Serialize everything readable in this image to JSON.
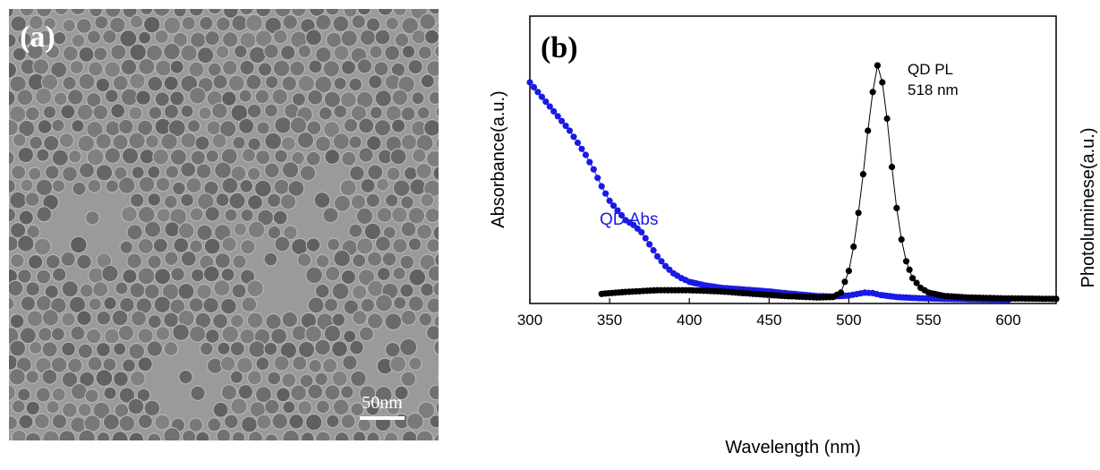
{
  "panel_a": {
    "label": "(a)",
    "scale_bar_label": "50nm"
  },
  "panel_b": {
    "label": "(b)"
  },
  "chart_data": {
    "type": "scatter",
    "xlabel": "Wavelength (nm)",
    "ylabel_left": "Absorbance(a.u.)",
    "ylabel_right": "Photoluminese(a.u.)",
    "xlim": [
      300,
      630
    ],
    "ylim": [
      0,
      1.0
    ],
    "xticks": [
      300,
      350,
      400,
      450,
      500,
      550,
      600
    ],
    "y_ticks_shown": false,
    "grid": false,
    "annotations": [
      {
        "text": "QD PL",
        "color": "#000000"
      },
      {
        "text": "518 nm",
        "color": "#000000"
      },
      {
        "text": "QD Abs",
        "color": "#1a1ae6"
      }
    ],
    "series": [
      {
        "name": "QD Abs",
        "color": "#1a1ae6",
        "style": "dots-line",
        "x": [
          300,
          305,
          310,
          315,
          320,
          325,
          330,
          335,
          340,
          345,
          350,
          355,
          360,
          365,
          370,
          375,
          380,
          385,
          390,
          395,
          400,
          410,
          420,
          430,
          440,
          450,
          460,
          470,
          480,
          490,
          500,
          505,
          510,
          515,
          520,
          530,
          540,
          550,
          560,
          570,
          580,
          590,
          600
        ],
        "y": [
          0.9,
          0.86,
          0.82,
          0.78,
          0.74,
          0.7,
          0.65,
          0.6,
          0.54,
          0.47,
          0.41,
          0.37,
          0.33,
          0.31,
          0.28,
          0.23,
          0.18,
          0.14,
          0.11,
          0.09,
          0.075,
          0.06,
          0.05,
          0.045,
          0.04,
          0.035,
          0.028,
          0.022,
          0.016,
          0.014,
          0.018,
          0.024,
          0.03,
          0.028,
          0.02,
          0.012,
          0.008,
          0.006,
          0.004,
          0.003,
          0.002,
          0.001,
          0.0
        ]
      },
      {
        "name": "QD PL",
        "color": "#000000",
        "style": "dots-line",
        "x": [
          345,
          360,
          380,
          400,
          420,
          440,
          460,
          480,
          490,
          495,
          500,
          503,
          506,
          509,
          512,
          515,
          518,
          521,
          524,
          527,
          530,
          533,
          536,
          540,
          545,
          550,
          560,
          575,
          600,
          630
        ],
        "y": [
          0.025,
          0.033,
          0.04,
          0.04,
          0.035,
          0.025,
          0.016,
          0.01,
          0.012,
          0.03,
          0.12,
          0.22,
          0.36,
          0.52,
          0.7,
          0.86,
          0.97,
          0.9,
          0.75,
          0.55,
          0.38,
          0.25,
          0.16,
          0.09,
          0.05,
          0.03,
          0.016,
          0.01,
          0.006,
          0.004
        ]
      }
    ]
  }
}
